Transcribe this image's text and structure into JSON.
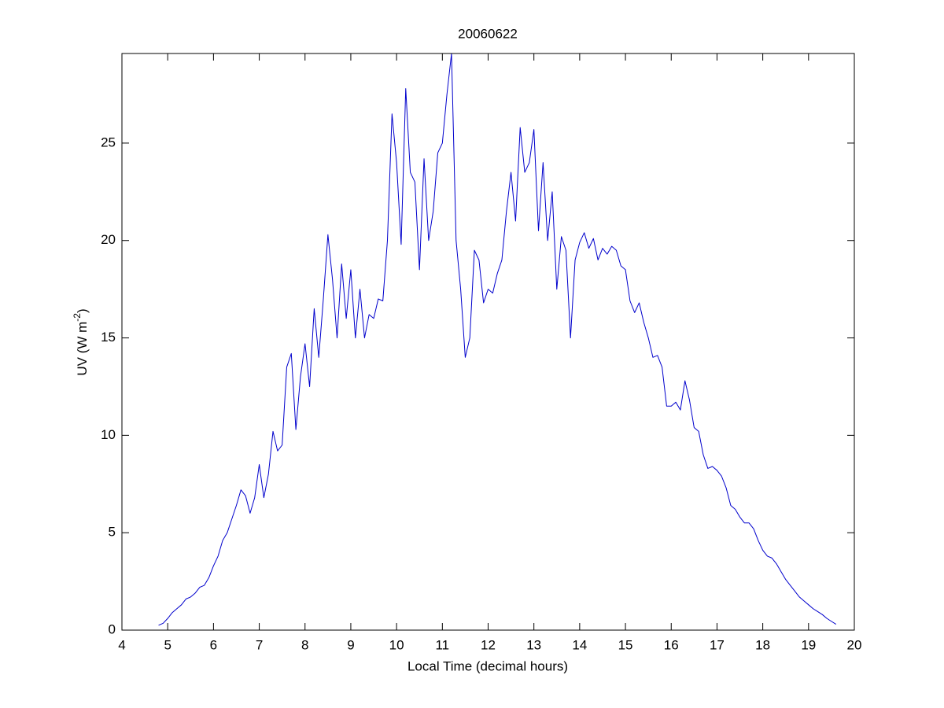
{
  "chart_data": {
    "type": "line",
    "title": "20060622",
    "x_label": "Local Time (decimal hours)",
    "y_label": {
      "text": "UV (W m",
      "superscript": "-2",
      "suffix": ")"
    },
    "xlim": [
      4,
      20
    ],
    "xticks": [
      4,
      5,
      6,
      7,
      8,
      9,
      10,
      11,
      12,
      13,
      14,
      15,
      16,
      17,
      18,
      19,
      20
    ],
    "ylim": [
      0,
      29.6
    ],
    "yticks": [
      0,
      5,
      10,
      15,
      20,
      25
    ],
    "x": [
      4.8,
      4.9,
      5.0,
      5.1,
      5.2,
      5.3,
      5.4,
      5.5,
      5.6,
      5.7,
      5.8,
      5.9,
      6.0,
      6.1,
      6.2,
      6.3,
      6.4,
      6.5,
      6.6,
      6.7,
      6.8,
      6.9,
      7.0,
      7.1,
      7.2,
      7.3,
      7.4,
      7.5,
      7.6,
      7.7,
      7.8,
      7.9,
      8.0,
      8.1,
      8.2,
      8.3,
      8.4,
      8.5,
      8.6,
      8.7,
      8.8,
      8.9,
      9.0,
      9.1,
      9.2,
      9.3,
      9.4,
      9.5,
      9.6,
      9.7,
      9.8,
      9.9,
      10.0,
      10.1,
      10.2,
      10.3,
      10.4,
      10.5,
      10.6,
      10.7,
      10.8,
      10.9,
      11.0,
      11.1,
      11.2,
      11.3,
      11.4,
      11.5,
      11.6,
      11.7,
      11.8,
      11.9,
      12.0,
      12.1,
      12.2,
      12.3,
      12.4,
      12.5,
      12.6,
      12.7,
      12.8,
      12.9,
      13.0,
      13.1,
      13.2,
      13.3,
      13.4,
      13.5,
      13.6,
      13.7,
      13.8,
      13.9,
      14.0,
      14.1,
      14.2,
      14.3,
      14.4,
      14.5,
      14.6,
      14.7,
      14.8,
      14.9,
      15.0,
      15.1,
      15.2,
      15.3,
      15.4,
      15.5,
      15.6,
      15.7,
      15.8,
      15.9,
      16.0,
      16.1,
      16.2,
      16.3,
      16.4,
      16.5,
      16.6,
      16.7,
      16.8,
      16.9,
      17.0,
      17.1,
      17.2,
      17.3,
      17.4,
      17.5,
      17.6,
      17.7,
      17.8,
      17.9,
      18.0,
      18.1,
      18.2,
      18.3,
      18.4,
      18.5,
      18.6,
      18.7,
      18.8,
      18.9,
      19.0,
      19.1,
      19.2,
      19.3,
      19.4,
      19.5,
      19.6
    ],
    "series": [
      {
        "color": "#0000cc",
        "values": [
          0.25,
          0.35,
          0.6,
          0.9,
          1.1,
          1.3,
          1.6,
          1.7,
          1.9,
          2.2,
          2.3,
          2.7,
          3.3,
          3.8,
          4.6,
          5.0,
          5.7,
          6.4,
          7.2,
          6.9,
          6.0,
          6.8,
          8.5,
          6.8,
          8.0,
          10.2,
          9.2,
          9.5,
          13.5,
          14.2,
          10.3,
          13.0,
          14.7,
          12.5,
          16.5,
          14.0,
          17.0,
          20.3,
          18.0,
          15.0,
          18.8,
          16.0,
          18.5,
          15.0,
          17.5,
          15.0,
          16.2,
          16.0,
          17.0,
          16.9,
          20.0,
          26.5,
          24.0,
          19.8,
          27.8,
          23.5,
          23.0,
          18.5,
          24.2,
          20.0,
          21.5,
          24.5,
          25.0,
          27.5,
          29.6,
          20.0,
          17.5,
          14.0,
          15.0,
          19.5,
          19.0,
          16.8,
          17.5,
          17.3,
          18.3,
          19.0,
          21.5,
          23.5,
          21.0,
          25.8,
          23.5,
          24.0,
          25.7,
          20.5,
          24.0,
          20.0,
          22.5,
          17.5,
          20.2,
          19.5,
          15.0,
          19.0,
          19.9,
          20.4,
          19.6,
          20.1,
          19.0,
          19.6,
          19.3,
          19.7,
          19.5,
          18.7,
          18.5,
          16.9,
          16.3,
          16.8,
          15.8,
          15.0,
          14.0,
          14.1,
          13.5,
          11.5,
          11.5,
          11.7,
          11.3,
          12.8,
          11.8,
          10.4,
          10.2,
          9.0,
          8.3,
          8.4,
          8.2,
          7.9,
          7.3,
          6.4,
          6.2,
          5.8,
          5.5,
          5.5,
          5.2,
          4.6,
          4.1,
          3.8,
          3.7,
          3.4,
          3.0,
          2.6,
          2.3,
          2.0,
          1.7,
          1.5,
          1.3,
          1.1,
          0.95,
          0.8,
          0.6,
          0.45,
          0.3
        ]
      }
    ]
  }
}
